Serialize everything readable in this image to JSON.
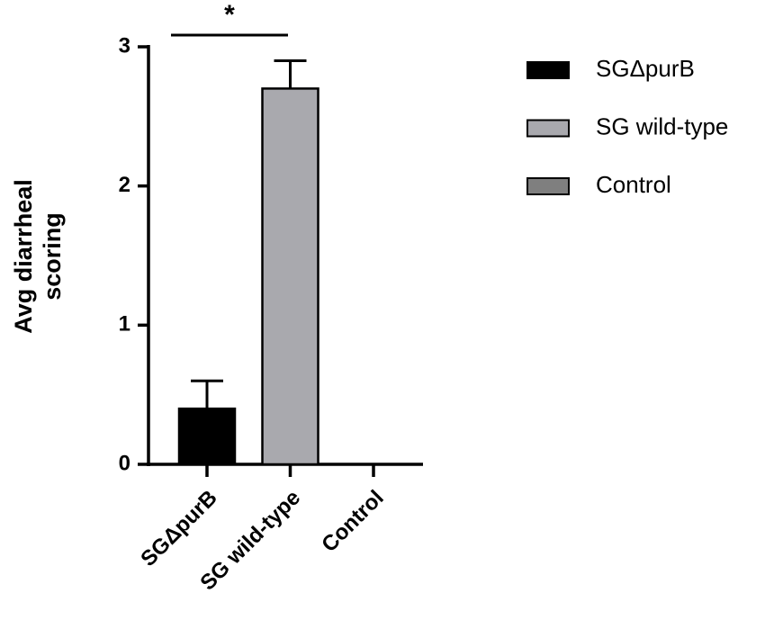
{
  "chart_data": {
    "type": "bar",
    "ylabel": [
      "Avg diarrheal",
      "scoring"
    ],
    "categories": [
      "SGΔpurB",
      "SG wild-type",
      "Control"
    ],
    "values": [
      0.4,
      2.7,
      0
    ],
    "errors": [
      0.2,
      0.2,
      0
    ],
    "colors": [
      "#000000",
      "#a9a9ae",
      "#7f7f7f"
    ],
    "ylim": [
      0,
      3
    ],
    "yticks": [
      0,
      1,
      2,
      3
    ],
    "annotation": "*"
  }
}
